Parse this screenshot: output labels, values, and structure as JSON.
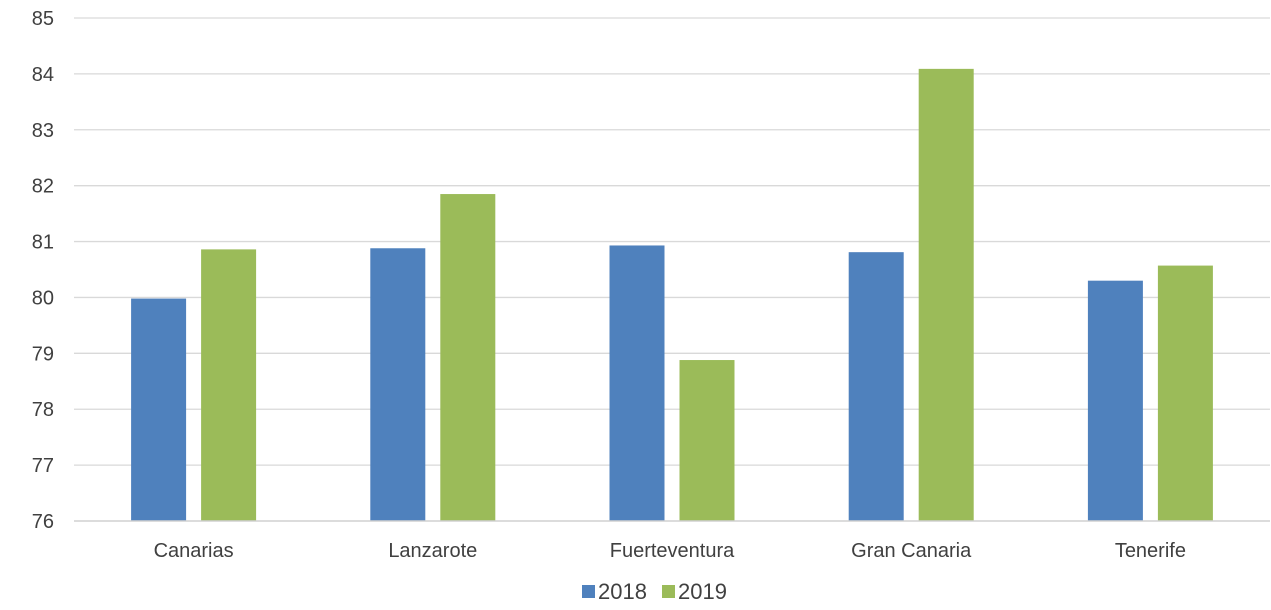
{
  "chart_data": {
    "type": "bar",
    "title": "",
    "xlabel": "",
    "ylabel": "",
    "categories": [
      "Canarias",
      "Lanzarote",
      "Fuerteventura",
      "Gran Canaria",
      "Tenerife"
    ],
    "series": [
      {
        "name": "2018",
        "color": "#4f81bd",
        "values": [
          79.98,
          80.88,
          80.93,
          80.81,
          80.3
        ]
      },
      {
        "name": "2019",
        "color": "#9bbb59",
        "values": [
          80.86,
          81.85,
          78.88,
          84.09,
          80.57
        ]
      }
    ],
    "ylim": [
      76,
      85
    ],
    "yticks": [
      "76",
      "77",
      "78",
      "79",
      "80",
      "81",
      "82",
      "83",
      "84",
      "85"
    ],
    "grid": true,
    "legend_position": "bottom"
  }
}
